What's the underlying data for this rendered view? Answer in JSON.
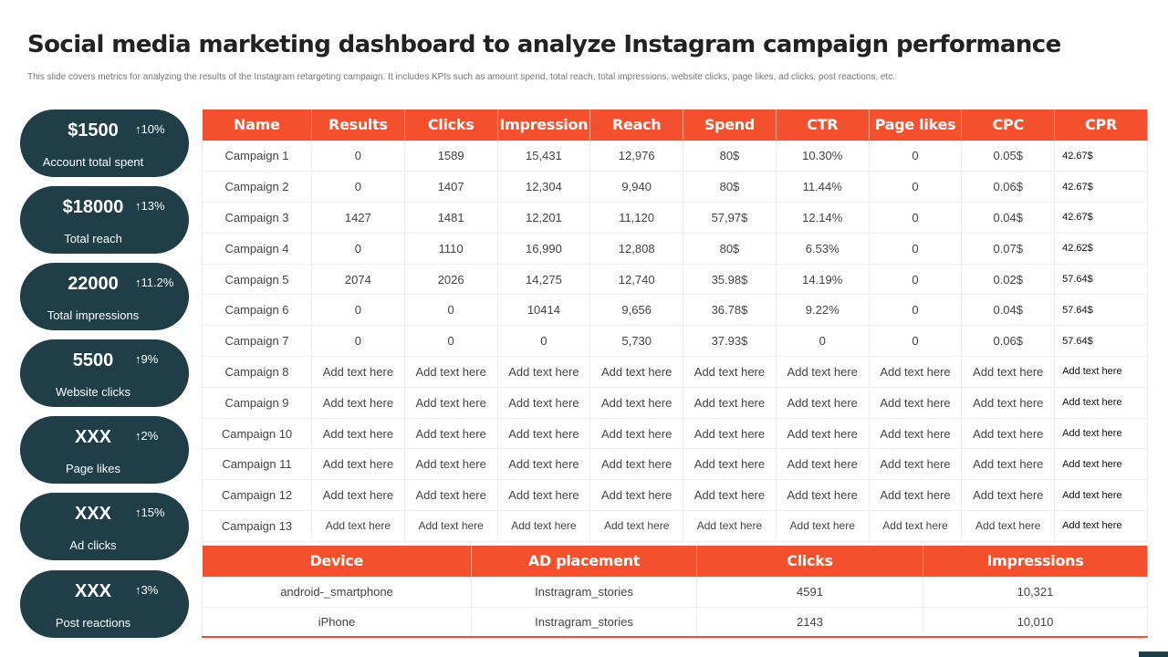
{
  "title": "Social media marketing dashboard to analyze Instagram campaign performance",
  "subtitle": "This slide covers metrics for analyzing the results of the Instagram retargeting campaign.  It includes KPIs  such as amount spend, total reach, total impressions, website clicks, page likes, ad clicks, post reactions, etc.",
  "kpis": [
    {
      "value": "$1500",
      "change": "10%",
      "label": "Account total spent"
    },
    {
      "value": "$18000",
      "change": "13%",
      "label": "Total reach"
    },
    {
      "value": "22000",
      "change": "11.2%",
      "label": "Total impressions"
    },
    {
      "value": "5500",
      "change": "9%",
      "label": "Website clicks"
    },
    {
      "value": "XXX",
      "change": "2%",
      "label": "Page likes"
    },
    {
      "value": "XXX",
      "change": "15%",
      "label": "Ad clicks"
    },
    {
      "value": "XXX",
      "change": "3%",
      "label": "Post reactions"
    }
  ],
  "campaign_table": {
    "headers": [
      "Name",
      "Results",
      "Clicks",
      "Impression",
      "Reach",
      "Spend",
      "CTR",
      "Page likes",
      "CPC",
      "CPR"
    ],
    "rows": [
      [
        "Campaign 1",
        "0",
        "1589",
        "15,431",
        "12,976",
        "80$",
        "10.30%",
        "0",
        "0.05$",
        "42.67$"
      ],
      [
        "Campaign 2",
        "0",
        "1407",
        "12,304",
        "9,940",
        "80$",
        "11.44%",
        "0",
        "0.06$",
        "42.67$"
      ],
      [
        "Campaign 3",
        "1427",
        "1481",
        "12,201",
        "11,120",
        "57,97$",
        "12.14%",
        "0",
        "0.04$",
        "42.67$"
      ],
      [
        "Campaign 4",
        "0",
        "1110",
        "16,990",
        "12,808",
        "80$",
        "6.53%",
        "0",
        "0.07$",
        "42.62$"
      ],
      [
        "Campaign 5",
        "2074",
        "2026",
        "14,275",
        "12,740",
        "35.98$",
        "14.19%",
        "0",
        "0.02$",
        "57.64$"
      ],
      [
        "Campaign 6",
        "0",
        "0",
        "10414",
        "9,656",
        "36.78$",
        "9.22%",
        "0",
        "0.04$",
        "57.64$"
      ],
      [
        "Campaign 7",
        "0",
        "0",
        "0",
        "5,730",
        "37.93$",
        "0",
        "0",
        "0.06$",
        "57.64$"
      ],
      [
        "Campaign 8",
        "Add text here",
        "Add text here",
        "Add text here",
        "Add text here",
        "Add text here",
        "Add text here",
        "Add text here",
        "Add text here",
        "Add text here"
      ],
      [
        "Campaign 9",
        "Add text here",
        "Add text here",
        "Add text here",
        "Add text here",
        "Add text here",
        "Add text here",
        "Add text here",
        "Add text here",
        "Add text here"
      ],
      [
        "Campaign 10",
        "Add text here",
        "Add text here",
        "Add text here",
        "Add text here",
        "Add text here",
        "Add text here",
        "Add text here",
        "Add text here",
        "Add text here"
      ],
      [
        "Campaign 11",
        "Add text here",
        "Add text here",
        "Add text here",
        "Add text here",
        "Add text here",
        "Add text here",
        "Add text here",
        "Add text here",
        "Add text here"
      ],
      [
        "Campaign 12",
        "Add text here",
        "Add text here",
        "Add text here",
        "Add text here",
        "Add text here",
        "Add text here",
        "Add text here",
        "Add text here",
        "Add text here"
      ],
      [
        "Campaign 13",
        "Add text here",
        "Add text here",
        "Add text here",
        "Add text here",
        "Add text here",
        "Add text here",
        "Add text here",
        "Add text here",
        "Add text here"
      ]
    ]
  },
  "device_table": {
    "headers": [
      "Device",
      "AD placement",
      "Clicks",
      "Impressions"
    ],
    "rows": [
      [
        "android-_smartphone",
        "Instragram_stories",
        "4591",
        "10,321"
      ],
      [
        "iPhone",
        "Instragram_stories",
        "2143",
        "10,010"
      ]
    ]
  },
  "colors": {
    "accent": "#f4502d",
    "pill": "#1f3e48"
  }
}
